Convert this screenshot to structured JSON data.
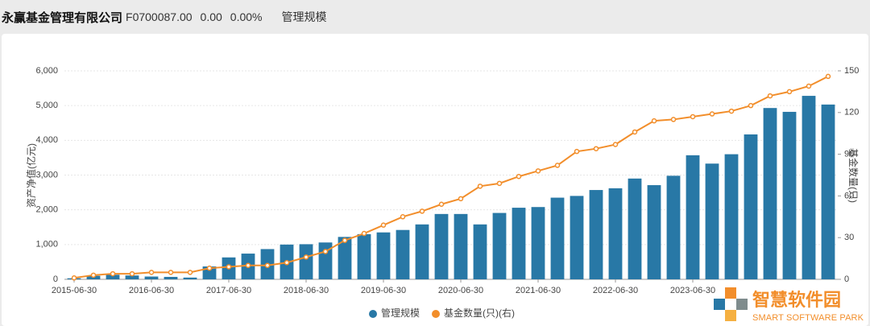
{
  "header": {
    "company": "永赢基金管理有限公司",
    "code": "F0700087.00",
    "change": "0.00",
    "change_pct": "0.00%",
    "tab": "管理规模"
  },
  "watermark": {
    "title": "智慧软件园",
    "subtitle": "SMART SOFTWARE PARK"
  },
  "chart_data": {
    "type": "bar",
    "ylabel": "资产净值(亿元)",
    "y2label": "基金数量(只)",
    "categories": [
      "2015-06-30",
      null,
      null,
      null,
      "2016-06-30",
      null,
      null,
      null,
      "2017-06-30",
      null,
      null,
      null,
      "2018-06-30",
      null,
      null,
      null,
      "2019-06-30",
      null,
      null,
      null,
      "2020-06-30",
      null,
      null,
      null,
      "2021-06-30",
      null,
      null,
      null,
      "2022-06-30",
      null,
      null,
      null,
      "2023-06-30",
      null,
      null,
      null,
      null,
      null,
      null,
      null
    ],
    "series": [
      {
        "name": "管理规模",
        "type": "bar",
        "color": "#2878a6",
        "values": [
          30,
          100,
          130,
          110,
          80,
          70,
          50,
          370,
          630,
          740,
          870,
          1000,
          1010,
          1060,
          1220,
          1300,
          1350,
          1420,
          1580,
          1880,
          1880,
          1580,
          1910,
          2060,
          2080,
          2350,
          2400,
          2570,
          2620,
          2900,
          2710,
          2980,
          3570,
          3330,
          3600,
          4170,
          4930,
          4820,
          5280,
          5030
        ]
      },
      {
        "name": "基金数量(只)(右)",
        "type": "line",
        "axis": "y2",
        "color": "#f28e2b",
        "values": [
          1,
          3,
          4,
          4,
          5,
          5,
          5,
          8,
          9,
          10,
          10,
          12,
          16,
          20,
          28,
          33,
          39,
          45,
          49,
          54,
          58,
          67,
          69,
          74,
          78,
          82,
          92,
          94,
          97,
          106,
          114,
          115,
          117,
          119,
          121,
          125,
          132,
          135,
          139,
          146
        ]
      }
    ],
    "ylim": [
      0,
      6000
    ],
    "yticks": [
      0,
      {
        "value": 1000,
        "label": "1,000"
      },
      {
        "value": 2000,
        "label": "2,000"
      },
      {
        "value": 3000,
        "label": "3,000"
      },
      {
        "value": 4000,
        "label": "4,000"
      },
      {
        "value": 5000,
        "label": "5,000"
      },
      {
        "value": 6000,
        "label": "6,000"
      }
    ],
    "y2lim": [
      0,
      150
    ],
    "y2ticks": [
      0,
      30,
      60,
      90,
      120,
      150
    ],
    "grid": true,
    "legend": "bottom"
  }
}
